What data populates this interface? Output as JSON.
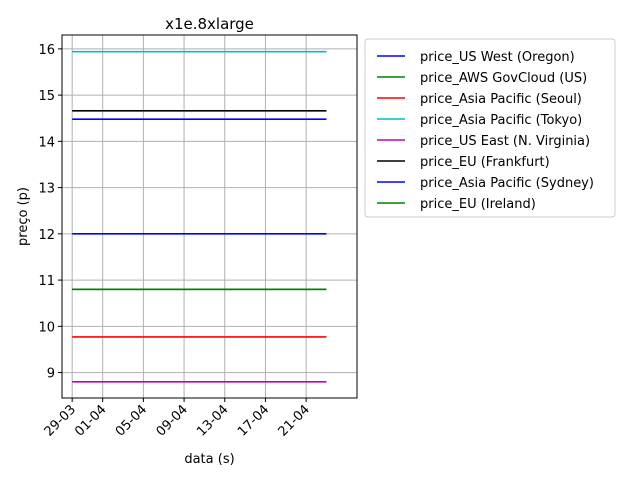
{
  "chart_data": {
    "type": "line",
    "title": "x1e.8xlarge",
    "xlabel": "data (s)",
    "ylabel": "preço (p)",
    "x_tick_labels": [
      "29-03",
      "01-04",
      "05-04",
      "09-04",
      "13-04",
      "17-04",
      "21-04"
    ],
    "x_ticks": [
      "2018-03-29",
      "2018-04-01",
      "2018-04-05",
      "2018-04-09",
      "2018-04-13",
      "2018-04-17",
      "2018-04-21"
    ],
    "xlim": [
      "2018-03-28",
      "2018-04-26"
    ],
    "x_range": [
      "2018-03-29",
      "2018-04-23"
    ],
    "y_ticks": [
      9,
      10,
      11,
      12,
      13,
      14,
      15,
      16
    ],
    "ylim": [
      8.45,
      16.3
    ],
    "grid": true,
    "legend_placement": "outside-right-top",
    "series": [
      {
        "name": "price_US West (Oregon)",
        "color": "#0000ff",
        "values": [
          12.0,
          12.0
        ]
      },
      {
        "name": "price_AWS GovCloud (US)",
        "color": "#008000",
        "values": [
          10.8,
          10.8
        ]
      },
      {
        "name": "price_Asia Pacific (Seoul)",
        "color": "#ff0000",
        "values": [
          9.77,
          9.77
        ]
      },
      {
        "name": "price_Asia Pacific (Tokyo)",
        "color": "#00bfbf",
        "values": [
          15.94,
          15.94
        ]
      },
      {
        "name": "price_US East (N. Virginia)",
        "color": "#bf00bf",
        "values": [
          8.8,
          8.8
        ]
      },
      {
        "name": "price_EU (Frankfurt)",
        "color": "#000000",
        "values": [
          14.66,
          14.66
        ]
      },
      {
        "name": "price_Asia Pacific (Sydney)",
        "color": "#0000ff",
        "values": [
          14.48,
          14.48
        ]
      },
      {
        "name": "price_EU (Ireland)",
        "color": "#008000",
        "values": [
          10.8,
          10.8
        ]
      }
    ]
  }
}
